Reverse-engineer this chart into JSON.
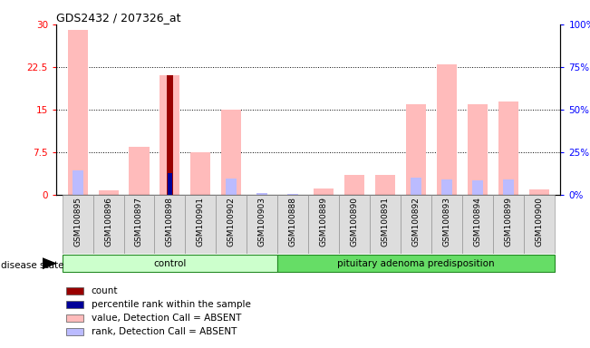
{
  "title": "GDS2432 / 207326_at",
  "samples": [
    "GSM100895",
    "GSM100896",
    "GSM100897",
    "GSM100898",
    "GSM100901",
    "GSM100902",
    "GSM100903",
    "GSM100888",
    "GSM100889",
    "GSM100890",
    "GSM100891",
    "GSM100892",
    "GSM100893",
    "GSM100894",
    "GSM100899",
    "GSM100900"
  ],
  "value_absent": [
    29.0,
    0.8,
    8.5,
    21.0,
    7.5,
    15.0,
    0.0,
    0.0,
    1.2,
    3.5,
    3.5,
    16.0,
    23.0,
    16.0,
    16.5,
    1.0
  ],
  "rank_absent": [
    14.5,
    0.0,
    0.0,
    0.0,
    0.0,
    9.5,
    1.0,
    0.5,
    0.0,
    0.0,
    0.0,
    10.0,
    9.0,
    8.5,
    9.0,
    0.0
  ],
  "count": [
    0.0,
    0.0,
    0.0,
    21.0,
    0.0,
    0.0,
    0.0,
    0.0,
    0.0,
    0.0,
    0.0,
    0.0,
    0.0,
    0.0,
    0.0,
    0.0
  ],
  "percentile": [
    0.0,
    0.0,
    0.0,
    13.0,
    0.0,
    0.0,
    0.0,
    0.0,
    0.0,
    0.0,
    0.0,
    0.0,
    0.0,
    0.0,
    0.0,
    0.0
  ],
  "groups": [
    {
      "label": "control",
      "start": 0,
      "end": 7,
      "color": "#ccffcc"
    },
    {
      "label": "pituitary adenoma predisposition",
      "start": 7,
      "end": 16,
      "color": "#66dd66"
    }
  ],
  "ylim_left": [
    0,
    30
  ],
  "ylim_right": [
    0,
    100
  ],
  "yticks_left": [
    0,
    7.5,
    15,
    22.5,
    30
  ],
  "yticks_right": [
    0,
    25,
    50,
    75,
    100
  ],
  "ytick_labels_left": [
    "0",
    "7.5",
    "15",
    "22.5",
    "30"
  ],
  "ytick_labels_right": [
    "0%",
    "25%",
    "50%",
    "75%",
    "100%"
  ],
  "color_value_absent": "#ffbbbb",
  "color_rank_absent": "#bbbbff",
  "color_count": "#990000",
  "color_percentile": "#000099",
  "legend_items": [
    {
      "label": "count",
      "color": "#990000"
    },
    {
      "label": "percentile rank within the sample",
      "color": "#000099"
    },
    {
      "label": "value, Detection Call = ABSENT",
      "color": "#ffbbbb"
    },
    {
      "label": "rank, Detection Call = ABSENT",
      "color": "#bbbbff"
    }
  ],
  "right_axis_label": "100%"
}
